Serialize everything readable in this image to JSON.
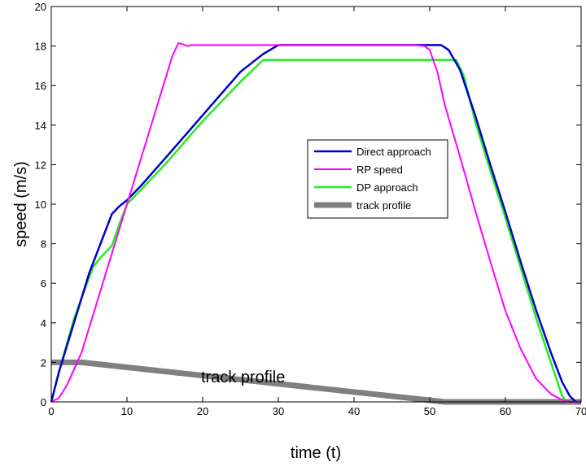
{
  "chart_data": {
    "type": "line",
    "title": "",
    "xlabel": "time (t)",
    "ylabel": "speed (m/s)",
    "xlim": [
      0,
      70
    ],
    "ylim": [
      0,
      20
    ],
    "xticks": [
      0,
      10,
      20,
      30,
      40,
      50,
      60,
      70
    ],
    "yticks": [
      0,
      2,
      4,
      6,
      8,
      10,
      12,
      14,
      16,
      18,
      20
    ],
    "xtick_labels": [
      "0",
      "10",
      "20",
      "30",
      "40",
      "50",
      "60",
      "70"
    ],
    "ytick_labels": [
      "0",
      "2",
      "4",
      "6",
      "8",
      "10",
      "12",
      "14",
      "16",
      "18",
      "20"
    ],
    "grid": false,
    "legend_position": "center-right",
    "annotation": "track profile",
    "series": [
      {
        "name": "Direct approach",
        "color": "#0000cc",
        "line_width": 2.5,
        "x": [
          0,
          1,
          3,
          5,
          7,
          8,
          9,
          10,
          12,
          15,
          20,
          25,
          28,
          30,
          35,
          40,
          45,
          50,
          51.5,
          52.5,
          54,
          56,
          58,
          60,
          62,
          64,
          66,
          67.5,
          68.5,
          69.3,
          70
        ],
        "y": [
          0,
          1.5,
          4,
          6.5,
          8.5,
          9.5,
          9.9,
          10.2,
          11,
          12.3,
          14.5,
          16.7,
          17.6,
          18.05,
          18.05,
          18.05,
          18.05,
          18.05,
          18.05,
          17.8,
          16.8,
          14.5,
          12,
          9.6,
          7.1,
          4.7,
          2.5,
          1,
          0.3,
          0,
          0
        ]
      },
      {
        "name": "RP speed",
        "color": "#ff00ff",
        "line_width": 2,
        "x": [
          0,
          1,
          2,
          4,
          6,
          8,
          10,
          12,
          14,
          16,
          16.8,
          17.3,
          18,
          18.5,
          20,
          25,
          30,
          40,
          48,
          49.3,
          50,
          51,
          52,
          54,
          56,
          58,
          60,
          62,
          64,
          66,
          67.5,
          68.5,
          69.5,
          70
        ],
        "y": [
          0,
          0.2,
          0.8,
          2.5,
          5,
          7.5,
          10,
          12.5,
          15,
          17.5,
          18.15,
          18.1,
          18,
          18.05,
          18.05,
          18.05,
          18.05,
          18.05,
          18.05,
          18,
          17.8,
          16.7,
          15,
          12.4,
          9.7,
          7.1,
          4.6,
          2.7,
          1.2,
          0.4,
          0.1,
          0,
          0,
          0
        ]
      },
      {
        "name": "DP approach",
        "color": "#22ee22",
        "line_width": 2.5,
        "x": [
          0,
          1,
          3,
          5.5,
          6.5,
          8,
          9,
          10,
          15,
          20,
          25,
          28,
          30,
          40,
          50,
          53.5,
          54.5,
          56,
          58,
          60,
          62,
          64,
          66,
          67.5,
          68,
          70
        ],
        "y": [
          0,
          1.5,
          4.2,
          6.8,
          7.3,
          7.9,
          9,
          10,
          12,
          14.2,
          16.2,
          17.3,
          17.3,
          17.3,
          17.3,
          17.3,
          16.5,
          14.2,
          11.7,
          9.3,
          6.8,
          4.3,
          2,
          0.3,
          0,
          0
        ]
      },
      {
        "name": "track profile",
        "color": "#808080",
        "line_width": 7,
        "x": [
          0,
          4,
          52,
          70
        ],
        "y": [
          2,
          2,
          0,
          0
        ]
      }
    ]
  }
}
